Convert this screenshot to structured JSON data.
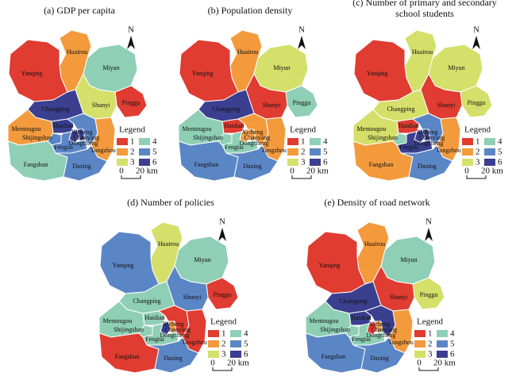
{
  "maps": [
    {
      "title_lines": [
        "(a) GDP per capita"
      ],
      "regions": [
        {
          "name": "Huairou",
          "class": 2
        },
        {
          "name": "Yanqing",
          "class": 1
        },
        {
          "name": "Miyun",
          "class": 4
        },
        {
          "name": "Pinggu",
          "class": 1
        },
        {
          "name": "Shunyi",
          "class": 3
        },
        {
          "name": "Changping",
          "class": 6
        },
        {
          "name": "Mentougou",
          "class": 2
        },
        {
          "name": "Haidian",
          "class": 6
        },
        {
          "name": "Shijingshan",
          "class": 5
        },
        {
          "name": "Xicheng",
          "class": 6
        },
        {
          "name": "Dongcheng",
          "class": 6
        },
        {
          "name": "Chaoyang",
          "class": 5
        },
        {
          "name": "Fengtai",
          "class": 5
        },
        {
          "name": "Tongzhou",
          "class": 2
        },
        {
          "name": "Fangshan",
          "class": 4
        },
        {
          "name": "Daxing",
          "class": 5
        }
      ]
    },
    {
      "title_lines": [
        "(b) Population density"
      ],
      "regions": [
        {
          "name": "Huairou",
          "class": 2
        },
        {
          "name": "Yanqing",
          "class": 1
        },
        {
          "name": "Miyun",
          "class": 3
        },
        {
          "name": "Pinggu",
          "class": 4
        },
        {
          "name": "Shunyi",
          "class": 1
        },
        {
          "name": "Changping",
          "class": 6
        },
        {
          "name": "Mentougou",
          "class": 4
        },
        {
          "name": "Haidian",
          "class": 1
        },
        {
          "name": "Shijingshan",
          "class": 4
        },
        {
          "name": "Xicheng",
          "class": 2
        },
        {
          "name": "Dongcheng",
          "class": 2
        },
        {
          "name": "Chaoyang",
          "class": 2
        },
        {
          "name": "Fengtai",
          "class": 4
        },
        {
          "name": "Tongzhou",
          "class": 2
        },
        {
          "name": "Fangshan",
          "class": 5
        },
        {
          "name": "Daxing",
          "class": 5
        }
      ]
    },
    {
      "title_lines": [
        "(c) Number of primary and secondary",
        "school students"
      ],
      "regions": [
        {
          "name": "Huairou",
          "class": 3
        },
        {
          "name": "Yanqing",
          "class": 1
        },
        {
          "name": "Miyun",
          "class": 3
        },
        {
          "name": "Pinggu",
          "class": 3
        },
        {
          "name": "Shunyi",
          "class": 1
        },
        {
          "name": "Changping",
          "class": 3
        },
        {
          "name": "Mentougou",
          "class": 3
        },
        {
          "name": "Haidian",
          "class": 1
        },
        {
          "name": "Shijingshan",
          "class": 4
        },
        {
          "name": "Xicheng",
          "class": 6
        },
        {
          "name": "Dongcheng",
          "class": 6
        },
        {
          "name": "Chaoyang",
          "class": 5
        },
        {
          "name": "Fengtai",
          "class": 6
        },
        {
          "name": "Tongzhou",
          "class": 2
        },
        {
          "name": "Fangshan",
          "class": 2
        },
        {
          "name": "Daxing",
          "class": 5
        }
      ]
    },
    {
      "title_lines": [
        "(d) Number of policies"
      ],
      "regions": [
        {
          "name": "Huairou",
          "class": 3
        },
        {
          "name": "Yanqing",
          "class": 5
        },
        {
          "name": "Miyun",
          "class": 4
        },
        {
          "name": "Pinggu",
          "class": 1
        },
        {
          "name": "Shunyi",
          "class": 5
        },
        {
          "name": "Changping",
          "class": 4
        },
        {
          "name": "Mentougou",
          "class": 4
        },
        {
          "name": "Haidian",
          "class": 4
        },
        {
          "name": "Shijingshan",
          "class": 4
        },
        {
          "name": "Xicheng",
          "class": 6
        },
        {
          "name": "Dongcheng",
          "class": 2
        },
        {
          "name": "Chaoyang",
          "class": 1
        },
        {
          "name": "Fengtai",
          "class": 4
        },
        {
          "name": "Tongzhou",
          "class": 1
        },
        {
          "name": "Fangshan",
          "class": 1
        },
        {
          "name": "Daxing",
          "class": 5
        }
      ]
    },
    {
      "title_lines": [
        "(e) Density of road network"
      ],
      "regions": [
        {
          "name": "Huairou",
          "class": 2
        },
        {
          "name": "Yanqing",
          "class": 1
        },
        {
          "name": "Miyun",
          "class": 4
        },
        {
          "name": "Pinggu",
          "class": 3
        },
        {
          "name": "Shunyi",
          "class": 1
        },
        {
          "name": "Changping",
          "class": 6
        },
        {
          "name": "Mentougou",
          "class": 4
        },
        {
          "name": "Haidian",
          "class": 6
        },
        {
          "name": "Shijingshan",
          "class": 4
        },
        {
          "name": "Xicheng",
          "class": 1
        },
        {
          "name": "Dongcheng",
          "class": 2
        },
        {
          "name": "Chaoyang",
          "class": 6
        },
        {
          "name": "Fengtai",
          "class": 4
        },
        {
          "name": "Tongzhou",
          "class": 2
        },
        {
          "name": "Fangshan",
          "class": 5
        },
        {
          "name": "Daxing",
          "class": 5
        }
      ]
    }
  ],
  "legend": {
    "title": "Legend",
    "classes": [
      {
        "value": 1,
        "color": "#e03c31"
      },
      {
        "value": 2,
        "color": "#f39a3d"
      },
      {
        "value": 3,
        "color": "#d4e06a"
      },
      {
        "value": 4,
        "color": "#8fcfb5"
      },
      {
        "value": 5,
        "color": "#5b86c5"
      },
      {
        "value": 6,
        "color": "#3a3f8f"
      }
    ]
  },
  "scale": {
    "zero": "0",
    "length": "20 km"
  },
  "north": "N"
}
